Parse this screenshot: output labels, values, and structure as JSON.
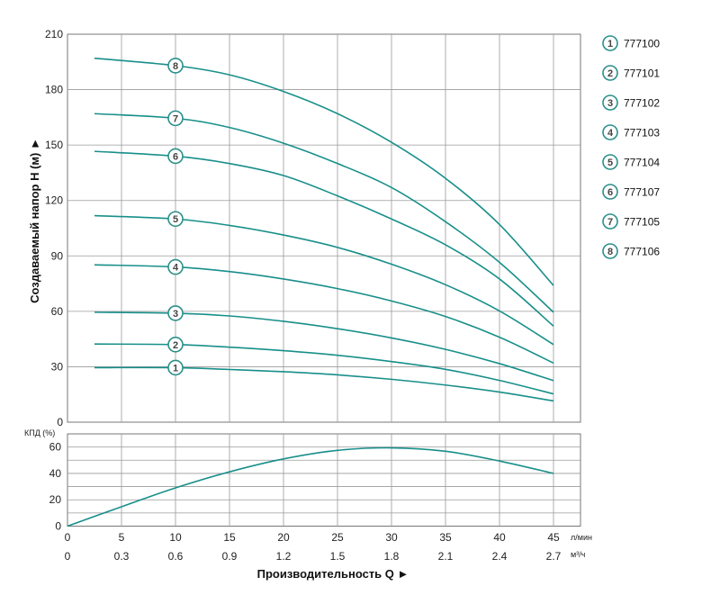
{
  "colors": {
    "curve": "#188f8a",
    "grid": "#9a9a9a",
    "frame": "#777777",
    "marker": "#2a8f8a"
  },
  "chart_data": [
    {
      "type": "line",
      "ylabel": "Создаваемый напор H (м) ►",
      "xlim": [
        0,
        47.5
      ],
      "ylim": [
        0,
        210
      ],
      "yticks": [
        0,
        30,
        60,
        90,
        120,
        150,
        180,
        210
      ],
      "marker_x": 10,
      "series": [
        {
          "name": "777100",
          "marker": "1",
          "points": [
            [
              2.5,
              29.5
            ],
            [
              10,
              29.5
            ],
            [
              15,
              28.5
            ],
            [
              20,
              27.3
            ],
            [
              25,
              25.6
            ],
            [
              30,
              23.2
            ],
            [
              35,
              20.1
            ],
            [
              40,
              16.3
            ],
            [
              45,
              11.5
            ]
          ]
        },
        {
          "name": "777101",
          "marker": "2",
          "points": [
            [
              2.5,
              42.3
            ],
            [
              10,
              42
            ],
            [
              15,
              40.6
            ],
            [
              20,
              38.7
            ],
            [
              25,
              36.2
            ],
            [
              30,
              32.8
            ],
            [
              35,
              28.6
            ],
            [
              40,
              22.6
            ],
            [
              45,
              15.3
            ]
          ]
        },
        {
          "name": "777102",
          "marker": "3",
          "points": [
            [
              2.5,
              59.5
            ],
            [
              10,
              59
            ],
            [
              15,
              57.5
            ],
            [
              20,
              54.6
            ],
            [
              25,
              50.6
            ],
            [
              30,
              45.6
            ],
            [
              35,
              39.4
            ],
            [
              40,
              31.7
            ],
            [
              45,
              22.5
            ]
          ]
        },
        {
          "name": "777103",
          "marker": "4",
          "points": [
            [
              2.5,
              85.2
            ],
            [
              10,
              84
            ],
            [
              15,
              81.5
            ],
            [
              20,
              77.5
            ],
            [
              25,
              72.3
            ],
            [
              30,
              65.6
            ],
            [
              35,
              57.2
            ],
            [
              40,
              46
            ],
            [
              45,
              32
            ]
          ]
        },
        {
          "name": "777104",
          "marker": "5",
          "points": [
            [
              2.5,
              111.8
            ],
            [
              10,
              110
            ],
            [
              15,
              106.5
            ],
            [
              20,
              101.3
            ],
            [
              25,
              94.6
            ],
            [
              30,
              85.5
            ],
            [
              35,
              74.4
            ],
            [
              40,
              60.2
            ],
            [
              45,
              42
            ]
          ]
        },
        {
          "name": "777107",
          "marker": "6",
          "points": [
            [
              2.5,
              146.6
            ],
            [
              10,
              144
            ],
            [
              15,
              140
            ],
            [
              20,
              133.5
            ],
            [
              25,
              122.5
            ],
            [
              30,
              110
            ],
            [
              35,
              96
            ],
            [
              40,
              77.5
            ],
            [
              45,
              52
            ]
          ]
        },
        {
          "name": "777105",
          "marker": "7",
          "points": [
            [
              2.5,
              167
            ],
            [
              10,
              164.5
            ],
            [
              15,
              159.5
            ],
            [
              20,
              151
            ],
            [
              25,
              140
            ],
            [
              30,
              127
            ],
            [
              35,
              108.5
            ],
            [
              40,
              86.5
            ],
            [
              45,
              59.5
            ]
          ]
        },
        {
          "name": "777106",
          "marker": "8",
          "points": [
            [
              2.5,
              197
            ],
            [
              10,
              193
            ],
            [
              15,
              188
            ],
            [
              20,
              179
            ],
            [
              25,
              167
            ],
            [
              30,
              151.5
            ],
            [
              35,
              132
            ],
            [
              40,
              107
            ],
            [
              45,
              74
            ]
          ]
        }
      ]
    },
    {
      "type": "line",
      "ylabel": "КПД (%)",
      "xlim": [
        0,
        47.5
      ],
      "ylim": [
        0,
        70
      ],
      "yticks": [
        0,
        20,
        40,
        60
      ],
      "series": [
        {
          "name": "КПД",
          "points": [
            [
              0,
              0
            ],
            [
              5,
              14.7
            ],
            [
              10,
              29
            ],
            [
              15,
              41.2
            ],
            [
              20,
              51
            ],
            [
              25,
              57.5
            ],
            [
              30,
              59.4
            ],
            [
              35,
              56.8
            ],
            [
              40,
              49.4
            ],
            [
              45,
              40
            ]
          ]
        }
      ]
    }
  ],
  "x_axis": {
    "ticks_lmin": [
      "0",
      "5",
      "10",
      "15",
      "20",
      "25",
      "30",
      "35",
      "40",
      "45"
    ],
    "unit_lmin": "л/мин",
    "ticks_m3h": [
      "0",
      "0.3",
      "0.6",
      "0.9",
      "1.2",
      "1.5",
      "1.8",
      "2.1",
      "2.4",
      "2.7"
    ],
    "unit_m3h": "м³/ч",
    "title": "Производительность Q ►"
  }
}
